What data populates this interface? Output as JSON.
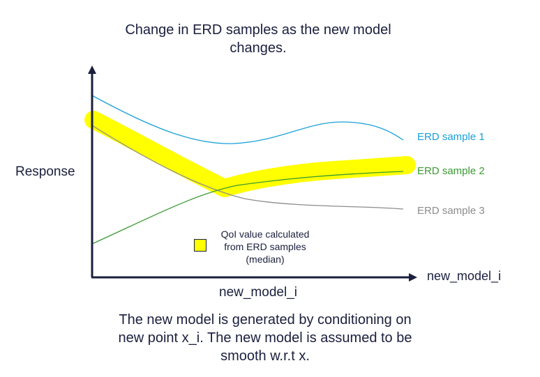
{
  "title": "Change in ERD samples as the new model changes.",
  "caption": "The new model is generated by conditioning on new point x_i. The new model is assumed to be smooth w.r.t x.",
  "axes": {
    "y_label": "Response",
    "x_label_bottom": "new_model_i",
    "x_label_arrow": "new_model_i"
  },
  "series": [
    {
      "name": "ERD sample 1",
      "color": "#1aa0d8"
    },
    {
      "name": "ERD sample 2",
      "color": "#3a9a33"
    },
    {
      "name": "ERD sample 3",
      "color": "#8c8c8c"
    }
  ],
  "legend": {
    "text": "QoI value calculated\nfrom ERD samples\n(median)",
    "swatch_color": "#ffff00"
  },
  "colors": {
    "axis": "#1a1f3d",
    "highlight": "#ffff00"
  }
}
